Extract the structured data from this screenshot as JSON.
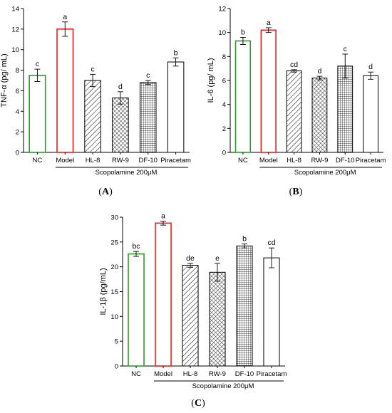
{
  "colors": {
    "nc": "#2a9d2a",
    "model": "#e82020",
    "axis": "#000000"
  },
  "chart_data": [
    {
      "type": "bar",
      "panel_label": "A",
      "ylabel": "TNF-α (pg/ mL)",
      "ylim": [
        0,
        14
      ],
      "yticks": [
        0,
        2,
        4,
        6,
        8,
        10,
        12,
        14
      ],
      "categories": [
        "NC",
        "Model",
        "HL-8",
        "RW-9",
        "DF-10",
        "Piracetam"
      ],
      "values": [
        7.5,
        12.0,
        7.0,
        5.3,
        6.8,
        8.8
      ],
      "errors": [
        0.6,
        0.7,
        0.6,
        0.6,
        0.2,
        0.4
      ],
      "significance": [
        "c",
        "a",
        "c",
        "d",
        "c",
        "b"
      ],
      "group_label": "Scopolamine 200μM",
      "fills": [
        "open-green",
        "open-red",
        "diagonal-hatch",
        "crosshatch-diagonal",
        "grid-hatch",
        "open-black"
      ]
    },
    {
      "type": "bar",
      "panel_label": "B",
      "ylabel": "IL-6 (pg/ mL)",
      "ylim": [
        0,
        12
      ],
      "yticks": [
        0,
        2,
        4,
        6,
        8,
        10,
        12
      ],
      "categories": [
        "NC",
        "Model",
        "HL-8",
        "RW-9",
        "DF-10",
        "Piracetam"
      ],
      "values": [
        9.3,
        10.2,
        6.8,
        6.2,
        7.2,
        6.4
      ],
      "errors": [
        0.3,
        0.2,
        0.1,
        0.15,
        1.0,
        0.3
      ],
      "significance": [
        "b",
        "a",
        "cd",
        "d",
        "c",
        "d"
      ],
      "group_label": "Scopolamine 200μM",
      "fills": [
        "open-green",
        "open-red",
        "diagonal-hatch",
        "crosshatch-diagonal",
        "grid-hatch",
        "open-black"
      ]
    },
    {
      "type": "bar",
      "panel_label": "C",
      "ylabel": "IL-1β (pg/mL)",
      "ylim": [
        0,
        30
      ],
      "yticks": [
        0,
        5,
        10,
        15,
        20,
        25,
        30
      ],
      "categories": [
        "NC",
        "Model",
        "HL-8",
        "RW-9",
        "DF-10",
        "Piracetam"
      ],
      "values": [
        22.6,
        28.8,
        20.3,
        18.9,
        24.2,
        21.8
      ],
      "errors": [
        0.5,
        0.4,
        0.4,
        1.8,
        0.4,
        2.0
      ],
      "significance": [
        "bc",
        "a",
        "de",
        "e",
        "b",
        "cd"
      ],
      "group_label": "Scopolamine 200μM",
      "fills": [
        "open-green",
        "open-red",
        "diagonal-hatch",
        "crosshatch-diagonal",
        "grid-hatch",
        "open-black"
      ]
    }
  ]
}
